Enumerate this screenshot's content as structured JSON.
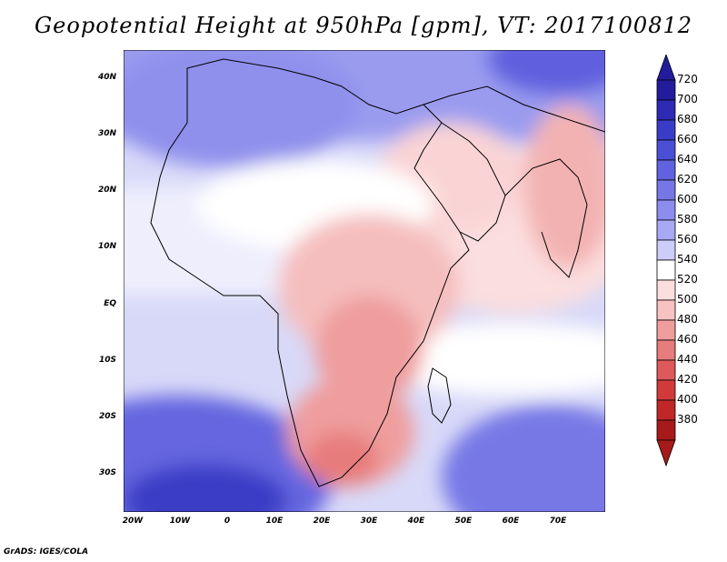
{
  "title": "Geopotential Height at 950hPa [gpm], VT: 2017100812",
  "credit": "GrADS: IGES/COLA",
  "lat_labels": [
    "40N",
    "30N",
    "20N",
    "10N",
    "EQ",
    "10S",
    "20S",
    "30S"
  ],
  "lon_labels": [
    "20W",
    "10W",
    "0",
    "10E",
    "20E",
    "30E",
    "40E",
    "50E",
    "60E",
    "70E"
  ],
  "colorbar": {
    "levels": [
      "720",
      "700",
      "680",
      "660",
      "640",
      "620",
      "600",
      "580",
      "560",
      "540",
      "520",
      "500",
      "480",
      "460",
      "440",
      "420",
      "400",
      "380"
    ],
    "colors": [
      "#221c9c",
      "#2d2ab6",
      "#3a3cc8",
      "#4b4fd6",
      "#6062df",
      "#7677e6",
      "#8c8def",
      "#a8a9f4",
      "#cccdf8",
      "#ffffff",
      "#fbdede",
      "#f6c2c2",
      "#ef9d9d",
      "#e77c7c",
      "#de5959",
      "#d23a3a",
      "#c12727",
      "#a61a1a"
    ]
  }
}
